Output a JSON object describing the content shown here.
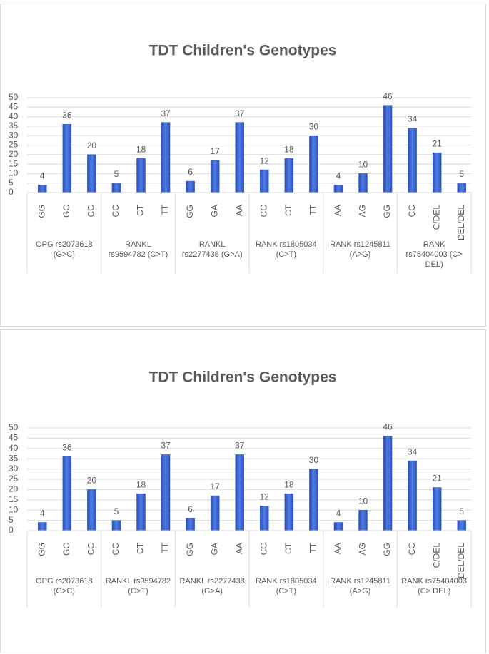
{
  "chart_data": [
    {
      "type": "bar",
      "title": "TDT Children's Genotypes",
      "color": "#3a62d0",
      "grid": true,
      "ylim": [
        0,
        50
      ],
      "yticks": [
        0,
        5,
        10,
        15,
        20,
        25,
        30,
        35,
        40,
        45,
        50
      ],
      "groups": [
        {
          "name": "OPG rs2073618 (G>C)",
          "categories": [
            "GG",
            "GC",
            "CC"
          ],
          "values": [
            4,
            36,
            20
          ]
        },
        {
          "name": "RANKL rs9594782 (C>T)",
          "categories": [
            "CC",
            "CT",
            "TT"
          ],
          "values": [
            5,
            18,
            37
          ]
        },
        {
          "name": "RANKL rs2277438 (G>A)",
          "categories": [
            "GG",
            "GA",
            "AA"
          ],
          "values": [
            6,
            17,
            37
          ]
        },
        {
          "name": "RANK rs1805034 (C>T)",
          "categories": [
            "CC",
            "CT",
            "TT"
          ],
          "values": [
            12,
            18,
            30
          ]
        },
        {
          "name": "RANK rs1245811 (A>G)",
          "categories": [
            "AA",
            "AG",
            "GG"
          ],
          "values": [
            4,
            10,
            46
          ]
        },
        {
          "name": "RANK rs75404003 (C> DEL)",
          "categories": [
            "CC",
            "C/DEL",
            "DEL/DEL"
          ],
          "values": [
            34,
            21,
            5
          ]
        }
      ]
    },
    {
      "type": "bar",
      "title": "TDT Children's Genotypes",
      "color": "#3a62d0",
      "grid": true,
      "ylim": [
        0,
        50
      ],
      "yticks": [
        0,
        5,
        10,
        15,
        20,
        25,
        30,
        35,
        40,
        45,
        50
      ],
      "groups": [
        {
          "name": "OPG rs2073618 (G>C)",
          "categories": [
            "GG",
            "GC",
            "CC"
          ],
          "values": [
            4,
            36,
            20
          ]
        },
        {
          "name": "RANKL rs9594782 (C>T)",
          "categories": [
            "CC",
            "CT",
            "TT"
          ],
          "values": [
            5,
            18,
            37
          ]
        },
        {
          "name": "RANKL rs2277438 (G>A)",
          "categories": [
            "GG",
            "GA",
            "AA"
          ],
          "values": [
            6,
            17,
            37
          ]
        },
        {
          "name": "RANK rs1805034 (C>T)",
          "categories": [
            "CC",
            "CT",
            "TT"
          ],
          "values": [
            12,
            18,
            30
          ]
        },
        {
          "name": "RANK rs1245811 (A>G)",
          "categories": [
            "AA",
            "AG",
            "GG"
          ],
          "values": [
            4,
            10,
            46
          ]
        },
        {
          "name": "RANK rs75404003 (C> DEL)",
          "categories": [
            "CC",
            "C/DEL",
            "DEL/DEL"
          ],
          "values": [
            34,
            21,
            5
          ]
        }
      ]
    }
  ]
}
